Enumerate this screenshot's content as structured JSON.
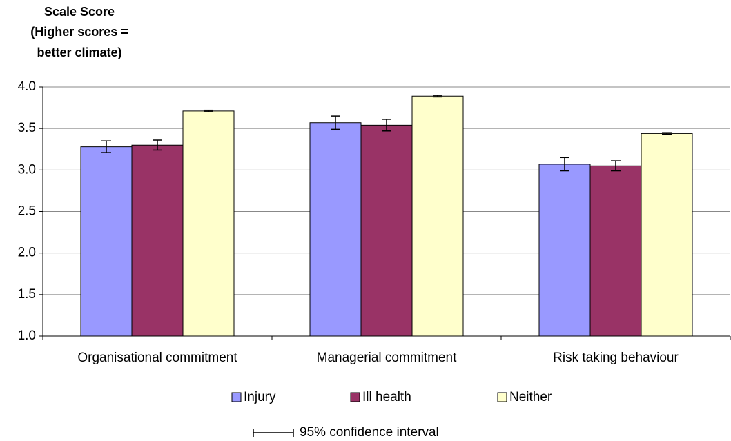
{
  "chart_data": {
    "type": "bar",
    "ylabel_lines": [
      "Scale Score",
      "(Higher scores =",
      "better climate)"
    ],
    "categories": [
      "Organisational commitment",
      "Managerial commitment",
      "Risk taking behaviour"
    ],
    "series": [
      {
        "name": "Injury",
        "color": "#9999ff",
        "values": [
          3.28,
          3.57,
          3.07
        ],
        "errors": [
          0.07,
          0.08,
          0.08
        ]
      },
      {
        "name": "Ill health",
        "color": "#993366",
        "values": [
          3.3,
          3.54,
          3.05
        ],
        "errors": [
          0.06,
          0.07,
          0.06
        ]
      },
      {
        "name": "Neither",
        "color": "#ffffcc",
        "values": [
          3.71,
          3.89,
          3.44
        ],
        "errors": [
          0.01,
          0.01,
          0.01
        ]
      }
    ],
    "ylim": [
      1.0,
      4.0
    ],
    "yticks": [
      {
        "value": 1.0,
        "label": "1.0"
      },
      {
        "value": 1.5,
        "label": "1.5"
      },
      {
        "value": 2.0,
        "label": "2.0"
      },
      {
        "value": 2.5,
        "label": "2.5"
      },
      {
        "value": 3.0,
        "label": "3.0"
      },
      {
        "value": 3.5,
        "label": "3.5"
      },
      {
        "value": 4.0,
        "label": "4.0"
      }
    ],
    "grid": true,
    "legend": "bottom",
    "annotation": "95% confidence interval"
  }
}
